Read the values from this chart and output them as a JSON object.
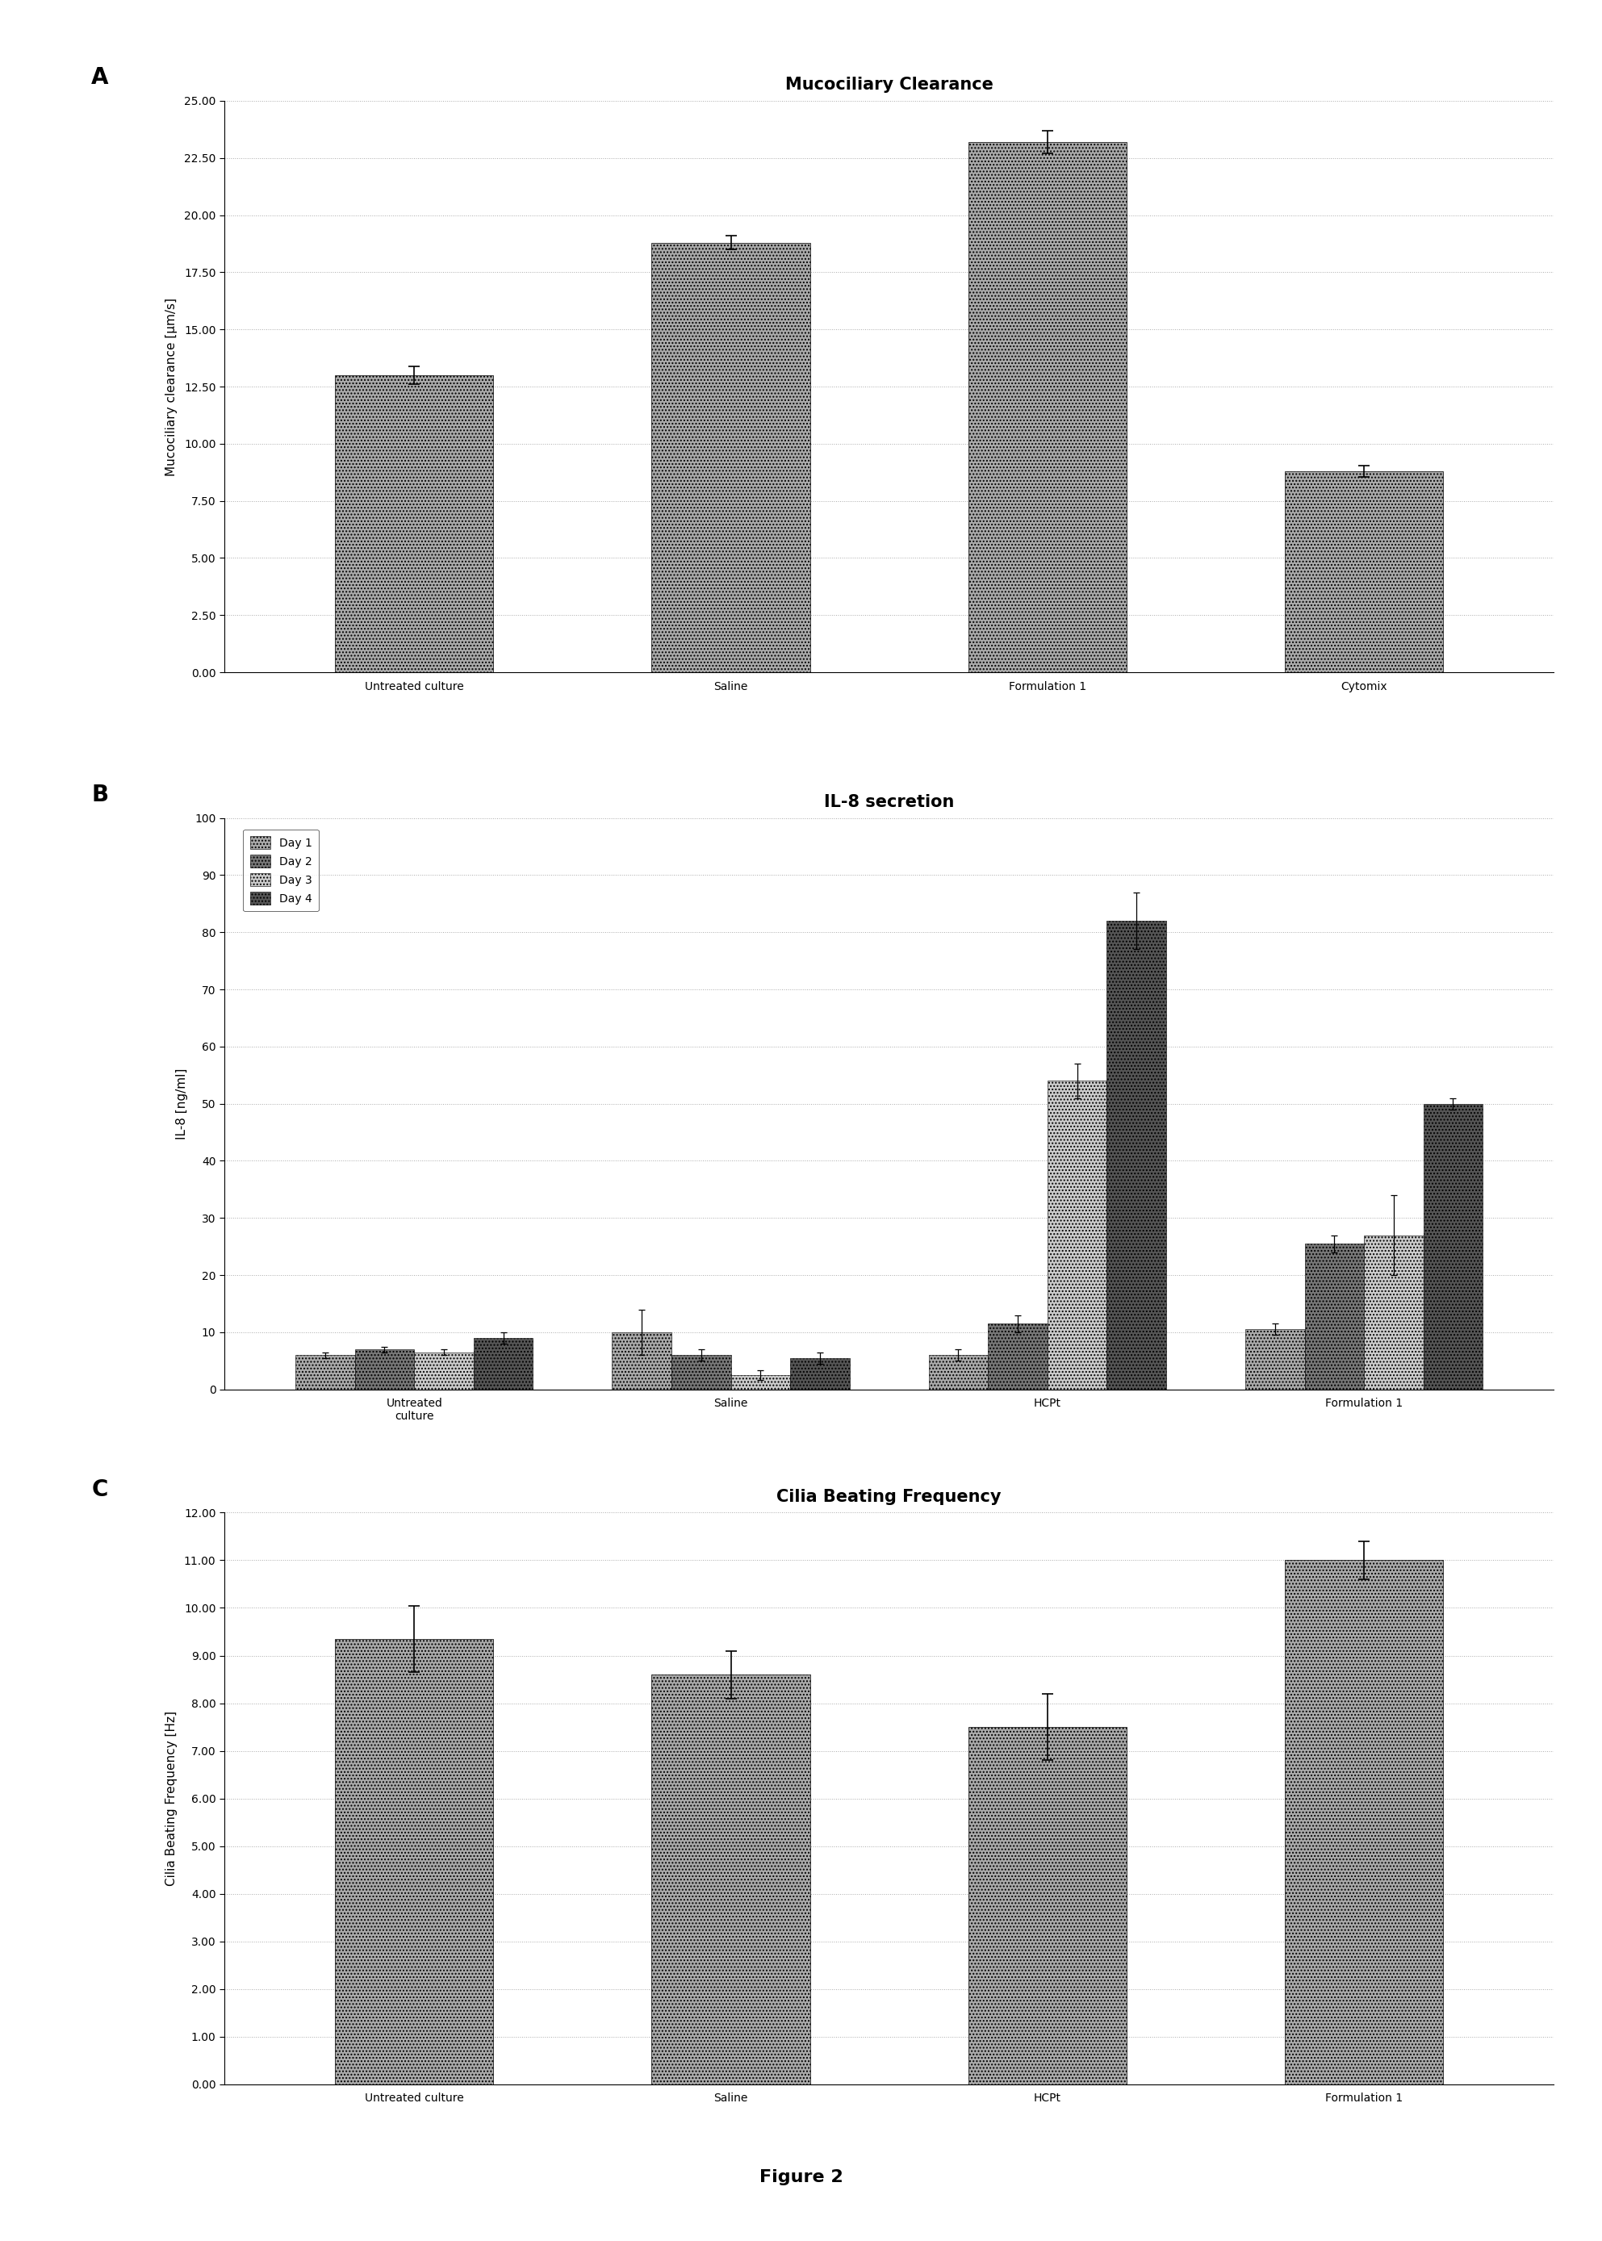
{
  "panel_A": {
    "title": "Mucociliary Clearance",
    "ylabel": "Mucociliary clearance [μm/s]",
    "categories": [
      "Untreated culture",
      "Saline",
      "Formulation 1",
      "Cytomix"
    ],
    "values": [
      13.0,
      18.8,
      23.2,
      8.8
    ],
    "errors": [
      0.4,
      0.3,
      0.5,
      0.25
    ],
    "ylim": [
      0,
      25
    ],
    "yticks": [
      0.0,
      2.5,
      5.0,
      7.5,
      10.0,
      12.5,
      15.0,
      17.5,
      20.0,
      22.5,
      25.0
    ],
    "bar_color": "#aaaaaa",
    "bar_hatch": "...."
  },
  "panel_B": {
    "title": "IL-8 secretion",
    "ylabel": "IL-8 [ng/ml]",
    "categories": [
      "Untreated\nculture",
      "Saline",
      "HCPt",
      "Formulation 1"
    ],
    "days": [
      "Day 1",
      "Day 2",
      "Day 3",
      "Day 4"
    ],
    "values": [
      [
        6.0,
        7.0,
        6.5,
        9.0
      ],
      [
        10.0,
        6.0,
        2.5,
        5.5
      ],
      [
        6.0,
        11.5,
        54.0,
        82.0
      ],
      [
        10.5,
        25.5,
        27.0,
        50.0
      ]
    ],
    "errors": [
      [
        0.5,
        0.5,
        0.5,
        1.0
      ],
      [
        4.0,
        1.0,
        0.8,
        1.0
      ],
      [
        1.0,
        1.5,
        3.0,
        5.0
      ],
      [
        1.0,
        1.5,
        7.0,
        1.0
      ]
    ],
    "ylim": [
      0,
      100
    ],
    "yticks": [
      0,
      10,
      20,
      30,
      40,
      50,
      60,
      70,
      80,
      90,
      100
    ],
    "day_colors": [
      "#aaaaaa",
      "#777777",
      "#cccccc",
      "#555555"
    ],
    "day_hatches": [
      "....",
      "....",
      "....",
      "...."
    ]
  },
  "panel_C": {
    "title": "Cilia Beating Frequency",
    "ylabel": "Cilia Beating Frequency [Hz]",
    "categories": [
      "Untreated culture",
      "Saline",
      "HCPt",
      "Formulation 1"
    ],
    "values": [
      9.35,
      8.6,
      7.5,
      11.0
    ],
    "errors": [
      0.7,
      0.5,
      0.7,
      0.4
    ],
    "ylim": [
      0,
      12
    ],
    "yticks": [
      0.0,
      1.0,
      2.0,
      3.0,
      4.0,
      5.0,
      6.0,
      7.0,
      8.0,
      9.0,
      10.0,
      11.0,
      12.0
    ],
    "bar_color": "#aaaaaa",
    "bar_hatch": "...."
  },
  "figure_label": "Figure 2",
  "background_color": "#ffffff"
}
